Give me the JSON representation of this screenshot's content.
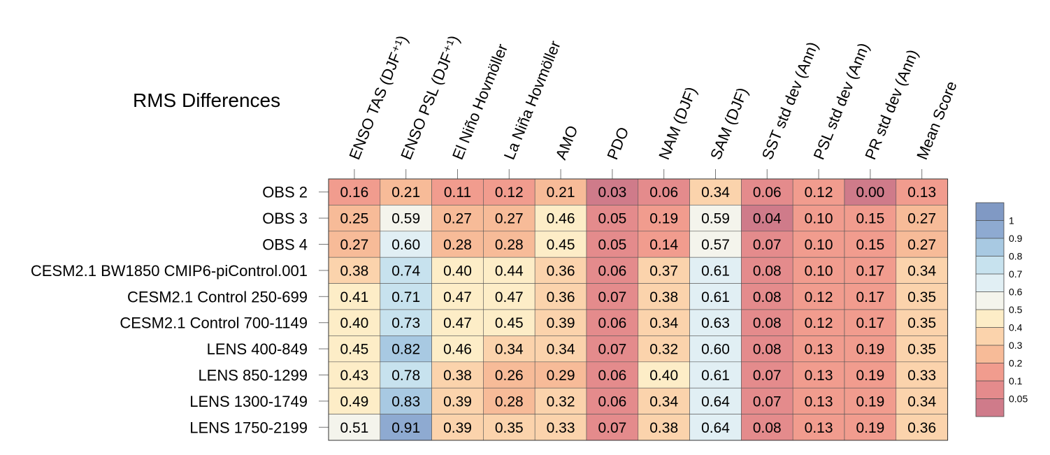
{
  "chart_data": {
    "type": "heatmap",
    "title": "RMS Differences",
    "columns": [
      "ENSO TAS (DJF⁺¹)",
      "ENSO PSL (DJF⁺¹)",
      "El Niño Hovmöller",
      "La Niña Hovmöller",
      "AMO",
      "PDO",
      "NAM (DJF)",
      "SAM (DJF)",
      "SST std dev (Ann)",
      "PSL std dev (Ann)",
      "PR std dev (Ann)",
      "Mean Score"
    ],
    "rows": [
      "OBS 2",
      "OBS 3",
      "OBS 4",
      "CESM2.1 BW1850 CMIP6-piControl.001",
      "CESM2.1 Control 250-699",
      "CESM2.1 Control 700-1149",
      "LENS 400-849",
      "LENS 850-1299",
      "LENS 1300-1749",
      "LENS 1750-2199"
    ],
    "values": [
      [
        "0.16",
        "0.21",
        "0.11",
        "0.12",
        "0.21",
        "0.03",
        "0.06",
        "0.34",
        "0.06",
        "0.12",
        "0.00",
        "0.13"
      ],
      [
        "0.25",
        "0.59",
        "0.27",
        "0.27",
        "0.46",
        "0.05",
        "0.19",
        "0.59",
        "0.04",
        "0.10",
        "0.15",
        "0.27"
      ],
      [
        "0.27",
        "0.60",
        "0.28",
        "0.28",
        "0.45",
        "0.05",
        "0.14",
        "0.57",
        "0.07",
        "0.10",
        "0.15",
        "0.27"
      ],
      [
        "0.38",
        "0.74",
        "0.40",
        "0.44",
        "0.36",
        "0.06",
        "0.37",
        "0.61",
        "0.08",
        "0.10",
        "0.17",
        "0.34"
      ],
      [
        "0.41",
        "0.71",
        "0.47",
        "0.47",
        "0.36",
        "0.07",
        "0.38",
        "0.61",
        "0.08",
        "0.12",
        "0.17",
        "0.35"
      ],
      [
        "0.40",
        "0.73",
        "0.47",
        "0.45",
        "0.39",
        "0.06",
        "0.34",
        "0.63",
        "0.08",
        "0.12",
        "0.17",
        "0.35"
      ],
      [
        "0.45",
        "0.82",
        "0.46",
        "0.34",
        "0.34",
        "0.07",
        "0.32",
        "0.60",
        "0.08",
        "0.13",
        "0.19",
        "0.35"
      ],
      [
        "0.43",
        "0.78",
        "0.38",
        "0.26",
        "0.29",
        "0.06",
        "0.40",
        "0.61",
        "0.07",
        "0.13",
        "0.19",
        "0.33"
      ],
      [
        "0.49",
        "0.83",
        "0.39",
        "0.28",
        "0.32",
        "0.06",
        "0.34",
        "0.64",
        "0.07",
        "0.13",
        "0.19",
        "0.34"
      ],
      [
        "0.51",
        "0.91",
        "0.39",
        "0.35",
        "0.33",
        "0.07",
        "0.38",
        "0.64",
        "0.08",
        "0.13",
        "0.19",
        "0.36"
      ]
    ],
    "colorbar": {
      "labels": [
        "1",
        "0.9",
        "0.8",
        "0.7",
        "0.6",
        "0.5",
        "0.4",
        "0.3",
        "0.2",
        "0.1",
        "0.05"
      ],
      "bins": [
        {
          "min": 0.0,
          "max": 0.05,
          "color": "#cf7b8a"
        },
        {
          "min": 0.05,
          "max": 0.1,
          "color": "#e48b8c"
        },
        {
          "min": 0.1,
          "max": 0.2,
          "color": "#f19c8e"
        },
        {
          "min": 0.2,
          "max": 0.3,
          "color": "#f7bb98"
        },
        {
          "min": 0.3,
          "max": 0.4,
          "color": "#fbd3ac"
        },
        {
          "min": 0.4,
          "max": 0.5,
          "color": "#fdedc7"
        },
        {
          "min": 0.5,
          "max": 0.6,
          "color": "#f4f4ec"
        },
        {
          "min": 0.6,
          "max": 0.7,
          "color": "#e1eff4"
        },
        {
          "min": 0.7,
          "max": 0.8,
          "color": "#c7e2ee"
        },
        {
          "min": 0.8,
          "max": 0.9,
          "color": "#a8c9e2"
        },
        {
          "min": 0.9,
          "max": 1.0,
          "color": "#8eaad1"
        },
        {
          "min": 1.0,
          "max": 99,
          "color": "#8099c4"
        }
      ]
    }
  }
}
